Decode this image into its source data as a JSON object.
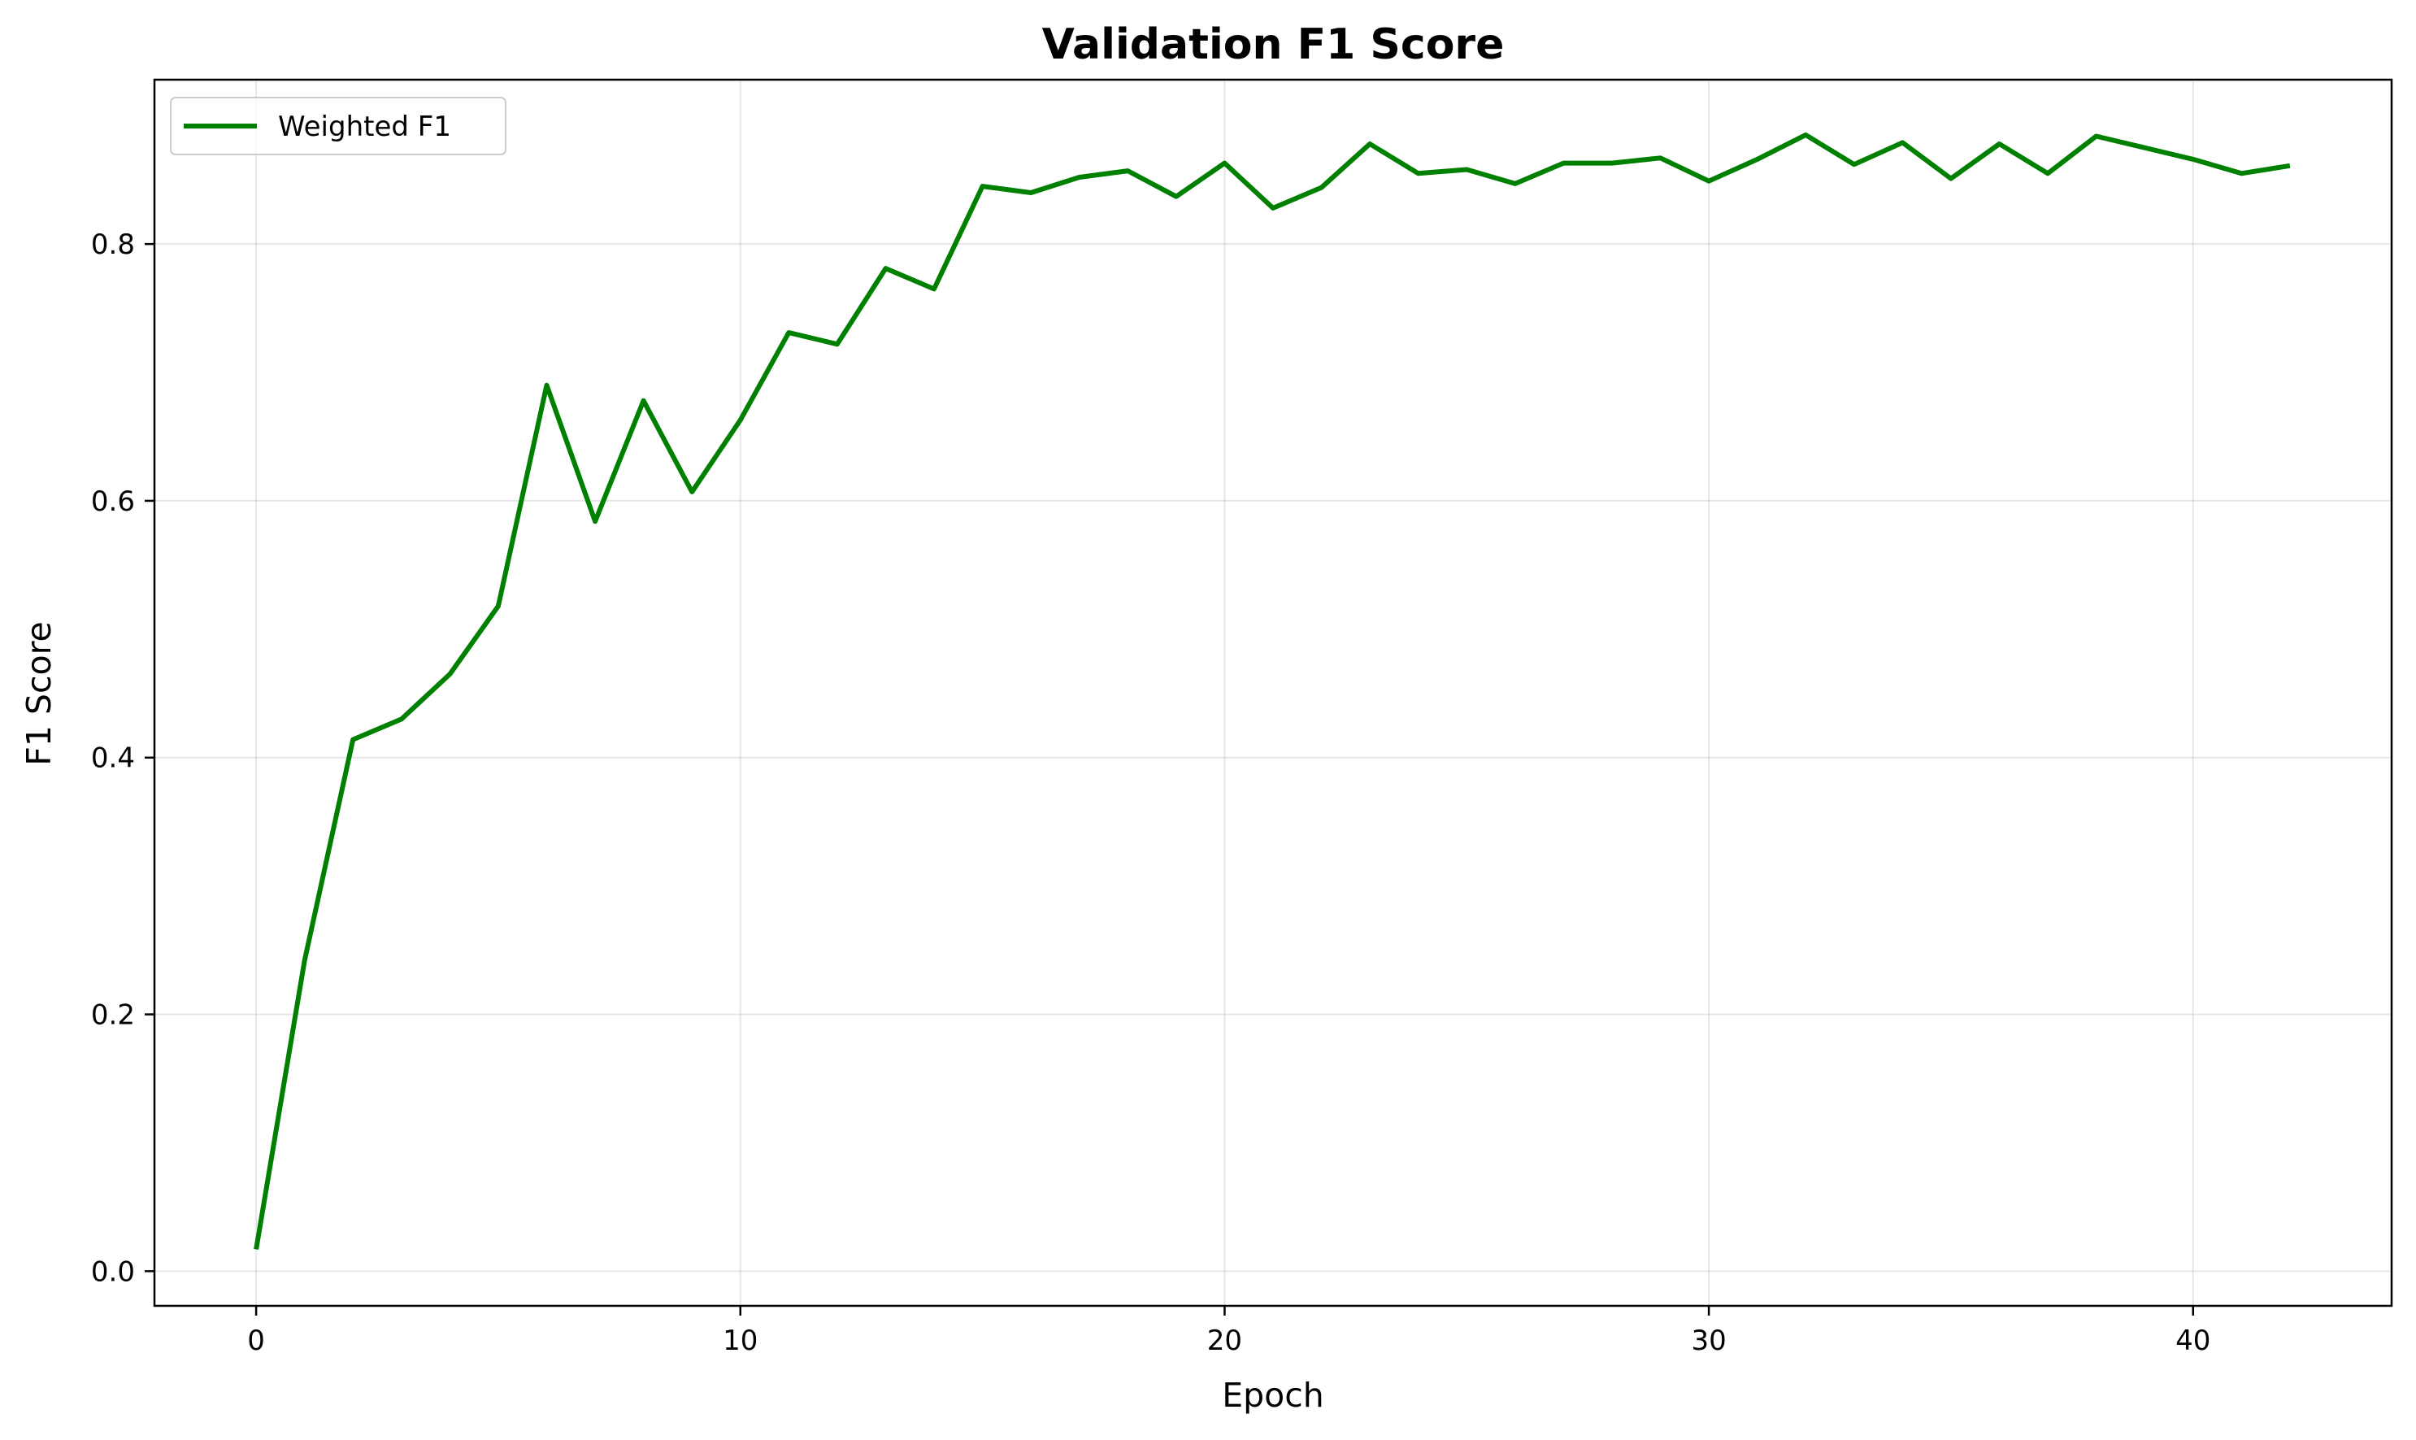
{
  "chart_data": {
    "type": "line",
    "title": "Validation F1 Score",
    "xlabel": "Epoch",
    "ylabel": "F1 Score",
    "xlim": [
      -2.1,
      44.1
    ],
    "ylim": [
      -0.027,
      0.928
    ],
    "xticks": [
      0,
      10,
      20,
      30,
      40
    ],
    "yticks": [
      0.0,
      0.2,
      0.4,
      0.6,
      0.8
    ],
    "ytick_labels": [
      "0.0",
      "0.2",
      "0.4",
      "0.6",
      "0.8"
    ],
    "grid": true,
    "legend_position": "top-left",
    "series": [
      {
        "name": "Weighted F1",
        "color": "#008000",
        "x": [
          0,
          1,
          2,
          3,
          4,
          5,
          6,
          7,
          8,
          9,
          10,
          11,
          12,
          13,
          14,
          15,
          16,
          17,
          18,
          19,
          20,
          21,
          22,
          23,
          24,
          25,
          26,
          27,
          28,
          29,
          30,
          31,
          32,
          33,
          34,
          35,
          36,
          37,
          38,
          39,
          40,
          41,
          42
        ],
        "y": [
          0.017,
          0.242,
          0.414,
          0.43,
          0.465,
          0.518,
          0.69,
          0.584,
          0.678,
          0.607,
          0.663,
          0.731,
          0.722,
          0.781,
          0.765,
          0.845,
          0.84,
          0.852,
          0.857,
          0.837,
          0.863,
          0.828,
          0.844,
          0.878,
          0.855,
          0.858,
          0.847,
          0.863,
          0.863,
          0.867,
          0.849,
          0.866,
          0.885,
          0.862,
          0.879,
          0.851,
          0.878,
          0.855,
          0.884,
          0.875,
          0.866,
          0.855,
          0.861
        ]
      }
    ]
  }
}
